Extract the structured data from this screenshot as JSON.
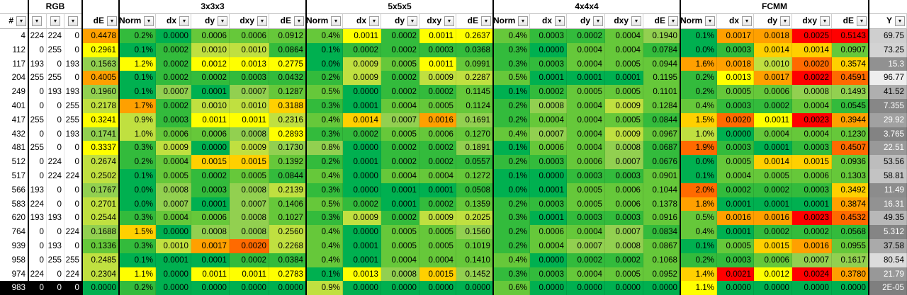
{
  "groups": [
    "RGB",
    "3x3x3",
    "5x5x5",
    "4x4x4",
    "FCMM"
  ],
  "header": [
    "#",
    "",
    "",
    "",
    "dE",
    "Norm",
    "dx",
    "dy",
    "dxy",
    "dE",
    "Norm",
    "dx",
    "dy",
    "dxy",
    "dE",
    "Norm",
    "dx",
    "dy",
    "dxy",
    "dE",
    "Norm",
    "dx",
    "dy",
    "dxy",
    "dE",
    "Y"
  ],
  "rows": [
    [
      "4",
      "224",
      "224",
      "0",
      "0.4478",
      "0.2%",
      "0.0000",
      "0.0006",
      "0.0006",
      "0.0912",
      "0.4%",
      "0.0011",
      "0.0002",
      "0.0011",
      "0.2637",
      "0.4%",
      "0.0003",
      "0.0002",
      "0.0004",
      "0.1940",
      "0.1%",
      "0.0017",
      "0.0018",
      "0.0025",
      "0.5143",
      "69.75"
    ],
    [
      "112",
      "0",
      "255",
      "0",
      "0.2961",
      "0.1%",
      "0.0002",
      "0.0010",
      "0.0010",
      "0.0864",
      "0.1%",
      "0.0002",
      "0.0002",
      "0.0003",
      "0.0368",
      "0.3%",
      "0.0000",
      "0.0004",
      "0.0004",
      "0.0784",
      "0.0%",
      "0.0003",
      "0.0014",
      "0.0014",
      "0.0907",
      "73.25"
    ],
    [
      "117",
      "193",
      "0",
      "193",
      "0.1563",
      "1.2%",
      "0.0002",
      "0.0012",
      "0.0013",
      "0.2775",
      "0.0%",
      "0.0009",
      "0.0005",
      "0.0011",
      "0.0991",
      "0.3%",
      "0.0003",
      "0.0004",
      "0.0005",
      "0.0944",
      "1.6%",
      "0.0018",
      "0.0010",
      "0.0020",
      "0.3574",
      "15.3"
    ],
    [
      "204",
      "255",
      "255",
      "0",
      "0.4005",
      "0.1%",
      "0.0002",
      "0.0002",
      "0.0003",
      "0.0432",
      "0.2%",
      "0.0009",
      "0.0002",
      "0.0009",
      "0.2287",
      "0.5%",
      "0.0001",
      "0.0001",
      "0.0001",
      "0.1195",
      "0.2%",
      "0.0013",
      "0.0017",
      "0.0022",
      "0.4591",
      "96.77"
    ],
    [
      "249",
      "0",
      "193",
      "193",
      "0.1960",
      "0.1%",
      "0.0007",
      "0.0001",
      "0.0007",
      "0.1287",
      "0.5%",
      "0.0000",
      "0.0002",
      "0.0002",
      "0.1145",
      "0.1%",
      "0.0002",
      "0.0005",
      "0.0005",
      "0.1101",
      "0.2%",
      "0.0005",
      "0.0006",
      "0.0008",
      "0.1493",
      "41.52"
    ],
    [
      "401",
      "0",
      "0",
      "255",
      "0.2178",
      "1.7%",
      "0.0002",
      "0.0010",
      "0.0010",
      "0.3188",
      "0.3%",
      "0.0001",
      "0.0004",
      "0.0005",
      "0.1124",
      "0.2%",
      "0.0008",
      "0.0004",
      "0.0009",
      "0.1284",
      "0.4%",
      "0.0003",
      "0.0002",
      "0.0004",
      "0.0545",
      "7.355"
    ],
    [
      "417",
      "255",
      "0",
      "255",
      "0.3241",
      "0.9%",
      "0.0003",
      "0.0011",
      "0.0011",
      "0.2316",
      "0.4%",
      "0.0014",
      "0.0007",
      "0.0016",
      "0.1691",
      "0.2%",
      "0.0004",
      "0.0004",
      "0.0005",
      "0.0844",
      "1.5%",
      "0.0020",
      "0.0011",
      "0.0023",
      "0.3944",
      "29.92"
    ],
    [
      "432",
      "0",
      "0",
      "193",
      "0.1741",
      "1.0%",
      "0.0006",
      "0.0006",
      "0.0008",
      "0.2893",
      "0.3%",
      "0.0002",
      "0.0005",
      "0.0006",
      "0.1270",
      "0.4%",
      "0.0007",
      "0.0004",
      "0.0009",
      "0.0967",
      "1.0%",
      "0.0000",
      "0.0004",
      "0.0004",
      "0.1230",
      "3.765"
    ],
    [
      "481",
      "255",
      "0",
      "0",
      "0.3337",
      "0.3%",
      "0.0009",
      "0.0000",
      "0.0009",
      "0.1730",
      "0.8%",
      "0.0000",
      "0.0002",
      "0.0002",
      "0.1891",
      "0.1%",
      "0.0006",
      "0.0004",
      "0.0008",
      "0.0687",
      "1.9%",
      "0.0003",
      "0.0001",
      "0.0003",
      "0.4507",
      "22.51"
    ],
    [
      "512",
      "0",
      "224",
      "0",
      "0.2674",
      "0.2%",
      "0.0004",
      "0.0015",
      "0.0015",
      "0.1392",
      "0.2%",
      "0.0001",
      "0.0002",
      "0.0002",
      "0.0557",
      "0.2%",
      "0.0003",
      "0.0006",
      "0.0007",
      "0.0676",
      "0.0%",
      "0.0005",
      "0.0014",
      "0.0015",
      "0.0936",
      "53.56"
    ],
    [
      "517",
      "0",
      "224",
      "224",
      "0.2502",
      "0.1%",
      "0.0005",
      "0.0002",
      "0.0005",
      "0.0844",
      "0.4%",
      "0.0000",
      "0.0004",
      "0.0004",
      "0.1272",
      "0.1%",
      "0.0000",
      "0.0003",
      "0.0003",
      "0.0901",
      "0.1%",
      "0.0004",
      "0.0005",
      "0.0006",
      "0.1303",
      "58.81"
    ],
    [
      "566",
      "193",
      "0",
      "0",
      "0.1767",
      "0.0%",
      "0.0008",
      "0.0003",
      "0.0008",
      "0.2139",
      "0.3%",
      "0.0000",
      "0.0001",
      "0.0001",
      "0.0508",
      "0.0%",
      "0.0001",
      "0.0005",
      "0.0006",
      "0.1044",
      "2.0%",
      "0.0002",
      "0.0002",
      "0.0003",
      "0.3492",
      "11.49"
    ],
    [
      "583",
      "224",
      "0",
      "0",
      "0.2701",
      "0.0%",
      "0.0007",
      "0.0001",
      "0.0007",
      "0.1406",
      "0.5%",
      "0.0002",
      "0.0001",
      "0.0002",
      "0.1359",
      "0.2%",
      "0.0003",
      "0.0005",
      "0.0006",
      "0.1378",
      "1.8%",
      "0.0001",
      "0.0001",
      "0.0001",
      "0.3874",
      "16.31"
    ],
    [
      "620",
      "193",
      "193",
      "0",
      "0.2544",
      "0.3%",
      "0.0004",
      "0.0006",
      "0.0008",
      "0.1027",
      "0.3%",
      "0.0009",
      "0.0002",
      "0.0009",
      "0.2025",
      "0.3%",
      "0.0001",
      "0.0003",
      "0.0003",
      "0.0916",
      "0.5%",
      "0.0016",
      "0.0016",
      "0.0023",
      "0.4532",
      "49.35"
    ],
    [
      "764",
      "0",
      "0",
      "224",
      "0.1688",
      "1.5%",
      "0.0000",
      "0.0008",
      "0.0008",
      "0.2560",
      "0.4%",
      "0.0000",
      "0.0005",
      "0.0005",
      "0.1560",
      "0.2%",
      "0.0006",
      "0.0004",
      "0.0007",
      "0.0834",
      "0.4%",
      "0.0001",
      "0.0002",
      "0.0002",
      "0.0568",
      "5.312"
    ],
    [
      "939",
      "0",
      "193",
      "0",
      "0.1336",
      "0.3%",
      "0.0010",
      "0.0017",
      "0.0020",
      "0.2268",
      "0.4%",
      "0.0001",
      "0.0005",
      "0.0005",
      "0.1019",
      "0.2%",
      "0.0004",
      "0.0007",
      "0.0008",
      "0.0867",
      "0.1%",
      "0.0005",
      "0.0015",
      "0.0016",
      "0.0955",
      "37.58"
    ],
    [
      "958",
      "0",
      "255",
      "255",
      "0.2485",
      "0.1%",
      "0.0001",
      "0.0001",
      "0.0002",
      "0.0384",
      "0.4%",
      "0.0001",
      "0.0004",
      "0.0004",
      "0.1410",
      "0.4%",
      "0.0000",
      "0.0002",
      "0.0002",
      "0.1068",
      "0.2%",
      "0.0003",
      "0.0006",
      "0.0007",
      "0.1617",
      "80.54"
    ],
    [
      "974",
      "224",
      "0",
      "224",
      "0.2304",
      "1.1%",
      "0.0000",
      "0.0011",
      "0.0011",
      "0.2783",
      "0.1%",
      "0.0013",
      "0.0008",
      "0.0015",
      "0.1452",
      "0.3%",
      "0.0003",
      "0.0004",
      "0.0005",
      "0.0952",
      "1.4%",
      "0.0021",
      "0.0012",
      "0.0024",
      "0.3780",
      "21.79"
    ],
    [
      "983",
      "0",
      "0",
      "0",
      "0.0000",
      "0.2%",
      "0.0000",
      "0.0000",
      "0.0000",
      "0.0000",
      "0.9%",
      "0.0000",
      "0.0000",
      "0.0000",
      "0.0000",
      "0.6%",
      "0.0000",
      "0.0000",
      "0.0000",
      "0.0000",
      "1.1%",
      "0.0000",
      "0.0000",
      "0.0000",
      "0.0000",
      "2E-05"
    ]
  ],
  "selected_row": "983",
  "colors": {
    "heat_scale": [
      "#00b050",
      "#33bb3c",
      "#66c83a",
      "#92d050",
      "#c0e040",
      "#ffff00",
      "#ffd000",
      "#ffa000",
      "#ff6a00",
      "#ff0000"
    ],
    "y_gray_light": "#f2f2f2",
    "y_gray_dark": "#7f7f7f",
    "selection": "#000000"
  }
}
